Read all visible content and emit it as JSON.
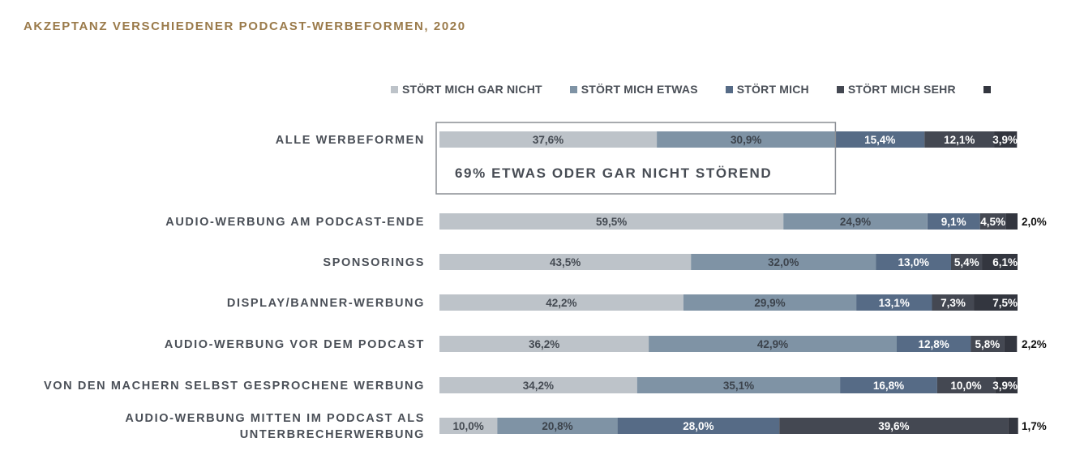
{
  "title": "AKZEPTANZ VERSCHIEDENER PODCAST-WERBEFORMEN, 2020",
  "legend": [
    {
      "label": "STÖRT MICH GAR NICHT",
      "color": "#bdc3c9"
    },
    {
      "label": "STÖRT MICH ETWAS",
      "color": "#7f93a5"
    },
    {
      "label": "STÖRT MICH",
      "color": "#566b86"
    },
    {
      "label": "STÖRT MICH SEHR",
      "color": "#444852"
    },
    {
      "label": "",
      "color": "#33363f"
    }
  ],
  "callout": "69% ETWAS ODER GAR NICHT STÖREND",
  "chart_data": {
    "type": "bar",
    "orientation": "horizontal",
    "stacked": true,
    "title": "AKZEPTANZ VERSCHIEDENER PODCAST-WERBEFORMEN, 2020",
    "categories": [
      [
        "ALLE WERBEFORMEN"
      ],
      [
        "AUDIO-WERBUNG AM PODCAST-ENDE"
      ],
      [
        "SPONSORINGS"
      ],
      [
        "DISPLAY/BANNER-WERBUNG"
      ],
      [
        "AUDIO-WERBUNG VOR DEM PODCAST"
      ],
      [
        "VON DEN MACHERN SELBST GESPROCHENE WERBUNG"
      ],
      [
        "AUDIO-WERBUNG MITTEN IM PODCAST ALS",
        "UNTERBRECHERWERBUNG"
      ]
    ],
    "series": [
      {
        "name": "STÖRT MICH GAR NICHT",
        "color": "#bdc3c9",
        "values": [
          37.6,
          59.5,
          43.5,
          42.2,
          36.2,
          34.2,
          10.0
        ],
        "labels": [
          "37,6%",
          "59,5%",
          "43,5%",
          "42,2%",
          "36,2%",
          "34,2%",
          "10,0%"
        ]
      },
      {
        "name": "STÖRT MICH ETWAS",
        "color": "#7f93a5",
        "values": [
          30.9,
          24.9,
          32.0,
          29.9,
          42.9,
          35.1,
          20.8
        ],
        "labels": [
          "30,9%",
          "24,9%",
          "32,0%",
          "29,9%",
          "42,9%",
          "35,1%",
          "20,8%"
        ]
      },
      {
        "name": "STÖRT MICH",
        "color": "#566b86",
        "values": [
          15.4,
          9.1,
          13.0,
          13.1,
          12.8,
          16.8,
          28.0
        ],
        "labels": [
          "15,4%",
          "9,1%",
          "13,0%",
          "13,1%",
          "12,8%",
          "16,8%",
          "28,0%"
        ]
      },
      {
        "name": "STÖRT MICH SEHR",
        "color": "#444852",
        "values": [
          12.1,
          4.5,
          5.4,
          7.3,
          5.8,
          10.0,
          39.6
        ],
        "labels": [
          "12,1%",
          "4,5%",
          "5,4%",
          "7,3%",
          "5,8%",
          "10,0%",
          "39,6%"
        ]
      },
      {
        "name": "",
        "color": "#33363f",
        "values": [
          3.9,
          2.0,
          6.1,
          7.5,
          2.2,
          3.9,
          1.7
        ],
        "labels": [
          "3,9%",
          "2,0%",
          "6,1%",
          "7,5%",
          "2,2%",
          "3,9%",
          "1,7%"
        ]
      }
    ],
    "xlim": [
      0,
      100
    ],
    "legend_position": "top"
  }
}
